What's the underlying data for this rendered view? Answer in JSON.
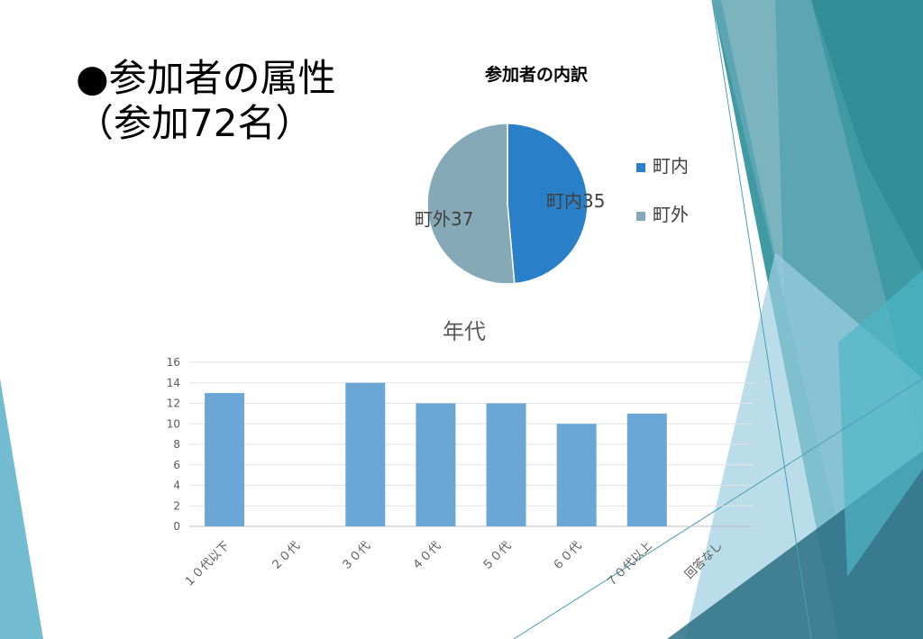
{
  "slide": {
    "title_line1": "●参加者の属性",
    "title_line2": "（参加72名）"
  },
  "colors": {
    "pie_inside": "#2a7fc9",
    "pie_outside": "#85a9b6",
    "bar": "#6aa6d6",
    "deco_teal": "#3f9aa3",
    "deco_blue": "#5ab0c8"
  },
  "chart_data": [
    {
      "type": "pie",
      "title": "参加者の内訳",
      "categories": [
        "町内",
        "町外"
      ],
      "values": [
        35,
        37
      ],
      "data_labels": [
        "町内35",
        "町外37"
      ],
      "legend": "right"
    },
    {
      "type": "bar",
      "title": "年代",
      "categories": [
        "１０代以下",
        "２０代",
        "３０代",
        "４０代",
        "５０代",
        "６０代",
        "７０代以上",
        "回答なし"
      ],
      "values": [
        13,
        0,
        14,
        12,
        12,
        10,
        11,
        0
      ],
      "ylim": [
        0,
        16
      ],
      "yticks": [
        0,
        2,
        4,
        6,
        8,
        10,
        12,
        14,
        16
      ],
      "grid": true
    }
  ]
}
